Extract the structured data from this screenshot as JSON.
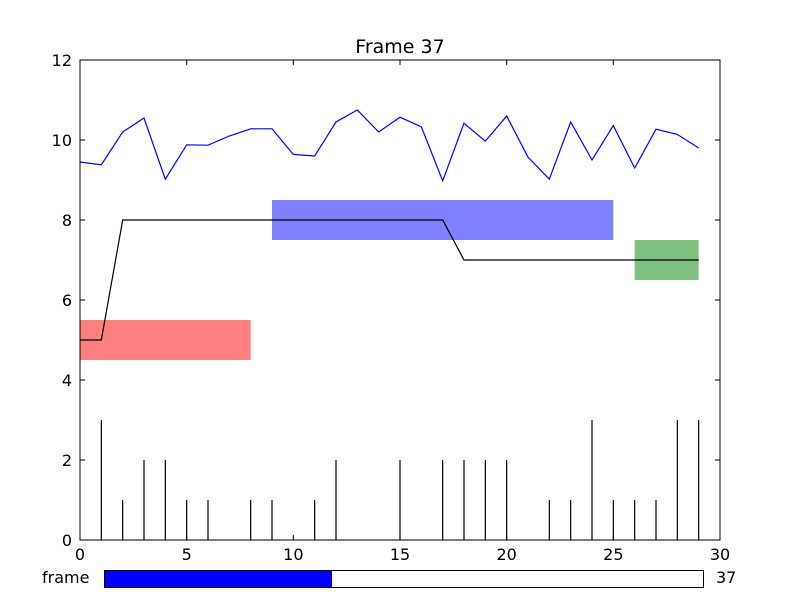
{
  "chart_data": {
    "type": "line",
    "title": "Frame 37",
    "xlim": [
      0,
      30
    ],
    "ylim": [
      0,
      12
    ],
    "xticks": [
      0,
      5,
      10,
      15,
      20,
      25,
      30
    ],
    "yticks": [
      0,
      2,
      4,
      6,
      8,
      10,
      12
    ],
    "grid": false,
    "series": [
      {
        "kind": "line",
        "color": "#0000ff",
        "x": [
          0,
          1,
          2,
          3,
          4,
          5,
          6,
          7,
          8,
          9,
          10,
          11,
          12,
          13,
          14,
          15,
          16,
          17,
          18,
          19,
          20,
          21,
          22,
          23,
          24,
          25,
          26,
          27,
          28,
          29
        ],
        "values": [
          9.45,
          9.38,
          10.2,
          10.55,
          9.02,
          9.88,
          9.87,
          10.1,
          10.28,
          10.28,
          9.64,
          9.6,
          10.45,
          10.75,
          10.2,
          10.57,
          10.33,
          8.98,
          10.42,
          9.97,
          10.6,
          9.57,
          9.02,
          10.45,
          9.5,
          10.36,
          9.3,
          10.27,
          10.14,
          9.8
        ]
      },
      {
        "kind": "step-line",
        "color": "#000000",
        "x": [
          0,
          1,
          2,
          3,
          4,
          5,
          6,
          7,
          8,
          9,
          10,
          11,
          12,
          13,
          14,
          15,
          16,
          17,
          18,
          19,
          20,
          21,
          22,
          23,
          24,
          25,
          26,
          27,
          28,
          29
        ],
        "values": [
          5,
          5,
          8,
          8,
          8,
          8,
          8,
          8,
          8,
          8,
          8,
          8,
          8,
          8,
          8,
          8,
          8,
          8,
          7,
          7,
          7,
          7,
          7,
          7,
          7,
          7,
          7,
          7,
          7,
          7
        ]
      },
      {
        "kind": "spikes",
        "color": "#000000",
        "x": [
          1,
          2,
          3,
          4,
          5,
          6,
          8,
          9,
          11,
          12,
          15,
          17,
          18,
          19,
          20,
          22,
          23,
          24,
          25,
          26,
          27,
          28,
          29
        ],
        "values": [
          3,
          1,
          2,
          2,
          1,
          1,
          1,
          1,
          1,
          2,
          2,
          2,
          2,
          2,
          2,
          1,
          1,
          3,
          1,
          1,
          1,
          3,
          3
        ]
      }
    ],
    "spans": [
      {
        "x0": 0,
        "x1": 8,
        "y0": 4.5,
        "y1": 5.5,
        "color": "#ff0000",
        "alpha": 0.5
      },
      {
        "x0": 9,
        "x1": 25,
        "y0": 7.5,
        "y1": 8.5,
        "color": "#0000ff",
        "alpha": 0.5
      },
      {
        "x0": 26,
        "x1": 29,
        "y0": 6.5,
        "y1": 7.5,
        "color": "#008000",
        "alpha": 0.5
      }
    ]
  },
  "slider": {
    "label": "frame",
    "value": "37",
    "fraction": 0.38,
    "fill_color": "#0000ff"
  }
}
